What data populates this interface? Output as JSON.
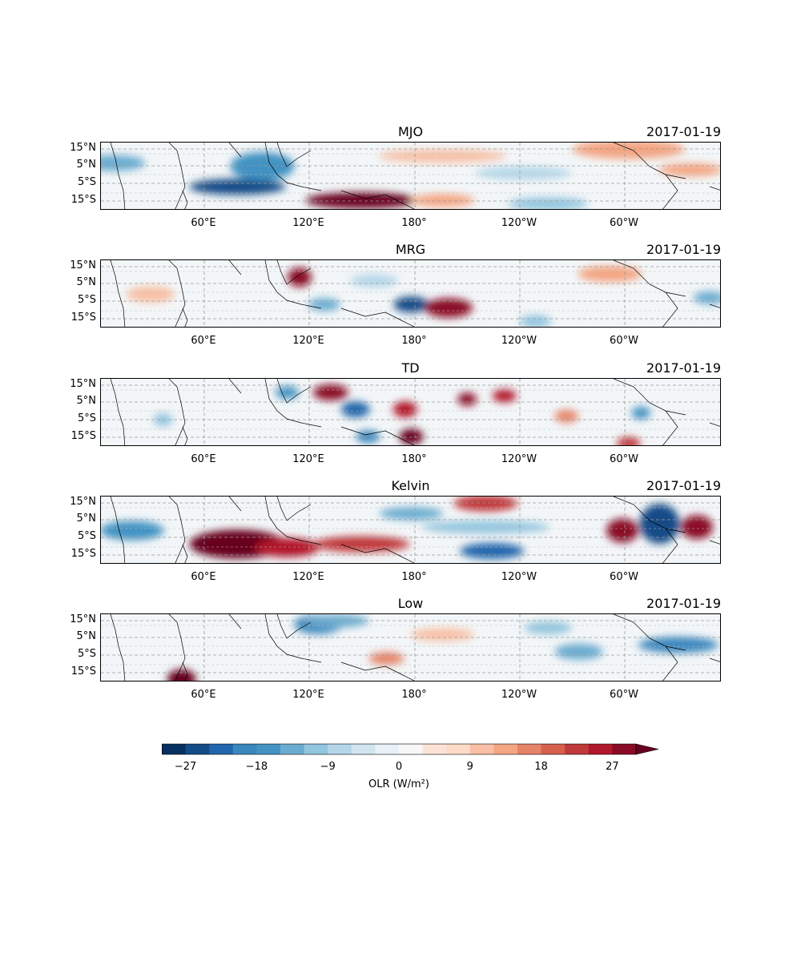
{
  "date_label": "2017-01-19",
  "panels": [
    {
      "title": "MJO"
    },
    {
      "title": "MRG"
    },
    {
      "title": "TD"
    },
    {
      "title": "Kelvin"
    },
    {
      "title": "Low"
    }
  ],
  "lat_ticks": [
    "15°N",
    "5°N",
    "5°S",
    "15°S"
  ],
  "lon_ticks": [
    "60°E",
    "120°E",
    "180°",
    "120°W",
    "60°W"
  ],
  "colorbar": {
    "ticks": [
      "−27",
      "−18",
      "−9",
      "0",
      "9",
      "18",
      "27"
    ],
    "label": "OLR (W/m²)",
    "colors": [
      "#053061",
      "#134c87",
      "#2166ac",
      "#3a87bd",
      "#4393c3",
      "#6aacd0",
      "#92c5de",
      "#b4d6e8",
      "#d1e5f0",
      "#e8f1f6",
      "#f7f7f7",
      "#fbe3d6",
      "#fddbc7",
      "#f8bfa4",
      "#f4a582",
      "#e58267",
      "#d6604d",
      "#c0393b",
      "#b2182b",
      "#8a0b25",
      "#67001f"
    ]
  },
  "chart_data": {
    "type": "heatmap",
    "variable": "OLR",
    "units": "W/m²",
    "date": "2017-01-19",
    "panels": [
      "MJO",
      "MRG",
      "TD",
      "Kelvin",
      "Low"
    ],
    "lon_range": [
      0,
      360
    ],
    "lat_range": [
      -20,
      20
    ],
    "color_range": [
      -30,
      30
    ]
  }
}
